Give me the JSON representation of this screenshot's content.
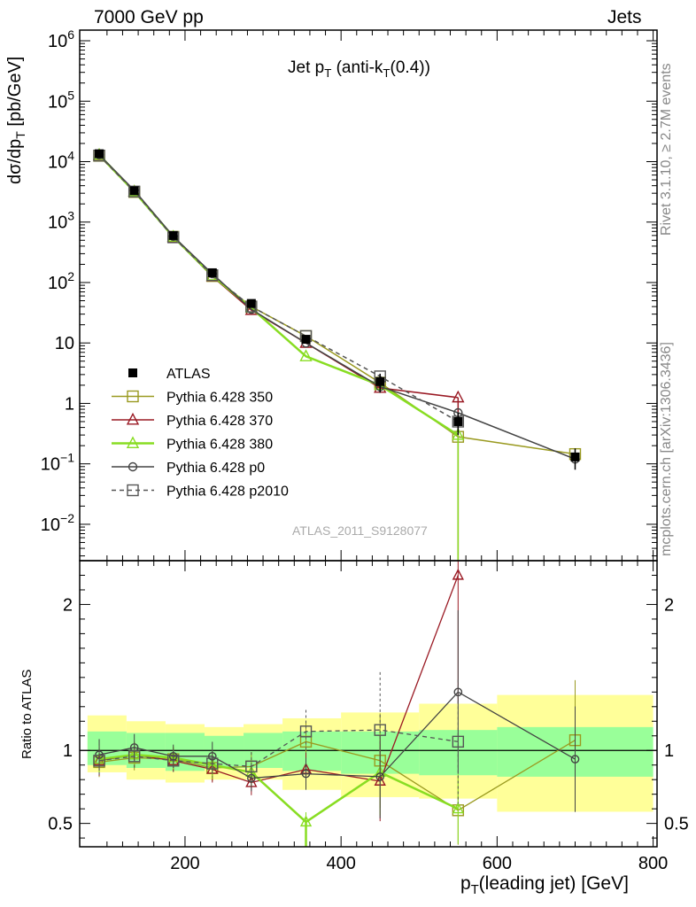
{
  "header": {
    "energy": "7000 GeV pp",
    "process": "Jets",
    "rivet": "Rivet 3.1.10, ≥ 2.7M events",
    "mcplots": "mcplots.cern.ch [arXiv:1306.3436]",
    "analysis": "ATLAS_2011_S9128077"
  },
  "chart_data": [
    {
      "type": "line",
      "title": "Jet p_T (anti-k_T(0.4))",
      "ylabel": "dσ/dp_T [pb/GeV]",
      "yscale": "log",
      "ylim": [
        0.0025,
        1500000
      ],
      "xlim": [
        65,
        805
      ],
      "legend_position": "lower-left",
      "x": [
        90,
        135,
        185,
        235,
        285,
        355,
        450,
        550,
        700
      ],
      "data": {
        "name": "ATLAS",
        "values": [
          13500,
          3300,
          600,
          145,
          45,
          11.5,
          2.3,
          0.5,
          0.13
        ],
        "err_lo": [
          1500,
          300,
          50,
          15,
          5,
          1.5,
          0.8,
          0.2,
          0.05
        ],
        "err_hi": [
          1500,
          300,
          50,
          15,
          5,
          1.5,
          0.8,
          0.2,
          0.05
        ]
      },
      "series": [
        {
          "name": "Pythia 6.428 350",
          "color": "#9a9a20",
          "marker": "square-open",
          "dash": "solid",
          "values": [
            12500,
            3150,
            570,
            128,
            40,
            13,
            2.2,
            0.28,
            0.145
          ]
        },
        {
          "name": "Pythia 6.428 370",
          "color": "#9a1a24",
          "marker": "triangle-open",
          "dash": "solid",
          "values": [
            12700,
            3180,
            560,
            126,
            35,
            10,
            1.8,
            1.25,
            null
          ]
        },
        {
          "name": "Pythia 6.428 380",
          "color": "#88dd22",
          "marker": "triangle-open",
          "dash": "solid",
          "values": [
            12900,
            3200,
            570,
            130,
            38,
            6,
            2.0,
            0.3,
            null
          ]
        },
        {
          "name": "Pythia 6.428 p0",
          "color": "#444444",
          "marker": "circle-open",
          "dash": "solid",
          "values": [
            13000,
            3350,
            580,
            140,
            36,
            10,
            1.9,
            0.7,
            0.12
          ]
        },
        {
          "name": "Pythia 6.428 p2010",
          "color": "#555555",
          "marker": "square-open",
          "dash": "dashed",
          "values": [
            12600,
            3200,
            560,
            132,
            40,
            13,
            2.8,
            0.5,
            null
          ]
        }
      ],
      "legend": [
        {
          "name": "ATLAS",
          "color": "#000000",
          "marker": "square-filled",
          "dash": "none"
        },
        {
          "name": "Pythia 6.428 350",
          "color": "#9a9a20",
          "marker": "square-open",
          "dash": "solid"
        },
        {
          "name": "Pythia 6.428 370",
          "color": "#9a1a24",
          "marker": "triangle-open",
          "dash": "solid"
        },
        {
          "name": "Pythia 6.428 380",
          "color": "#88dd22",
          "marker": "triangle-open",
          "dash": "solid"
        },
        {
          "name": "Pythia 6.428 p0",
          "color": "#444444",
          "marker": "circle-open",
          "dash": "solid"
        },
        {
          "name": "Pythia 6.428 p2010",
          "color": "#555555",
          "marker": "square-open",
          "dash": "dashed"
        }
      ]
    },
    {
      "type": "line",
      "ylabel": "Ratio to ATLAS",
      "xlabel": "p_T(leading jet) [GeV]",
      "ylim": [
        0.34,
        2.3
      ],
      "xlim": [
        65,
        805
      ],
      "x_ticks": [
        200,
        400,
        600,
        800
      ],
      "y_ticks": [
        0.5,
        1,
        2
      ],
      "bands": {
        "edges": [
          75,
          125,
          175,
          225,
          275,
          325,
          400,
          500,
          600,
          800
        ],
        "yellow_lo": [
          0.85,
          0.8,
          0.78,
          0.8,
          0.8,
          0.73,
          0.68,
          0.67,
          0.58
        ],
        "yellow_hi": [
          1.24,
          1.2,
          1.18,
          1.16,
          1.18,
          1.22,
          1.26,
          1.32,
          1.38
        ],
        "green_lo": [
          0.9,
          0.88,
          0.86,
          0.88,
          0.88,
          0.86,
          0.84,
          0.83,
          0.82
        ],
        "green_hi": [
          1.13,
          1.12,
          1.12,
          1.1,
          1.12,
          1.13,
          1.13,
          1.14,
          1.16
        ]
      },
      "series": [
        {
          "name": "Pythia 6.428 350",
          "values": [
            0.92,
            0.95,
            0.94,
            0.88,
            0.89,
            1.06,
            0.93,
            0.59,
            1.07
          ]
        },
        {
          "name": "Pythia 6.428 370",
          "values": [
            0.93,
            0.97,
            0.93,
            0.87,
            0.78,
            0.87,
            0.79,
            2.2,
            null
          ]
        },
        {
          "name": "Pythia 6.428 380",
          "values": [
            0.94,
            0.97,
            0.95,
            0.9,
            0.85,
            0.51,
            0.85,
            0.6,
            null
          ]
        },
        {
          "name": "Pythia 6.428 p0",
          "values": [
            0.97,
            1.02,
            0.96,
            0.96,
            0.81,
            0.84,
            0.82,
            1.4,
            0.94
          ]
        },
        {
          "name": "Pythia 6.428 p2010",
          "values": [
            0.93,
            0.96,
            0.93,
            0.91,
            0.89,
            1.13,
            1.14,
            1.06,
            null
          ]
        }
      ]
    }
  ]
}
